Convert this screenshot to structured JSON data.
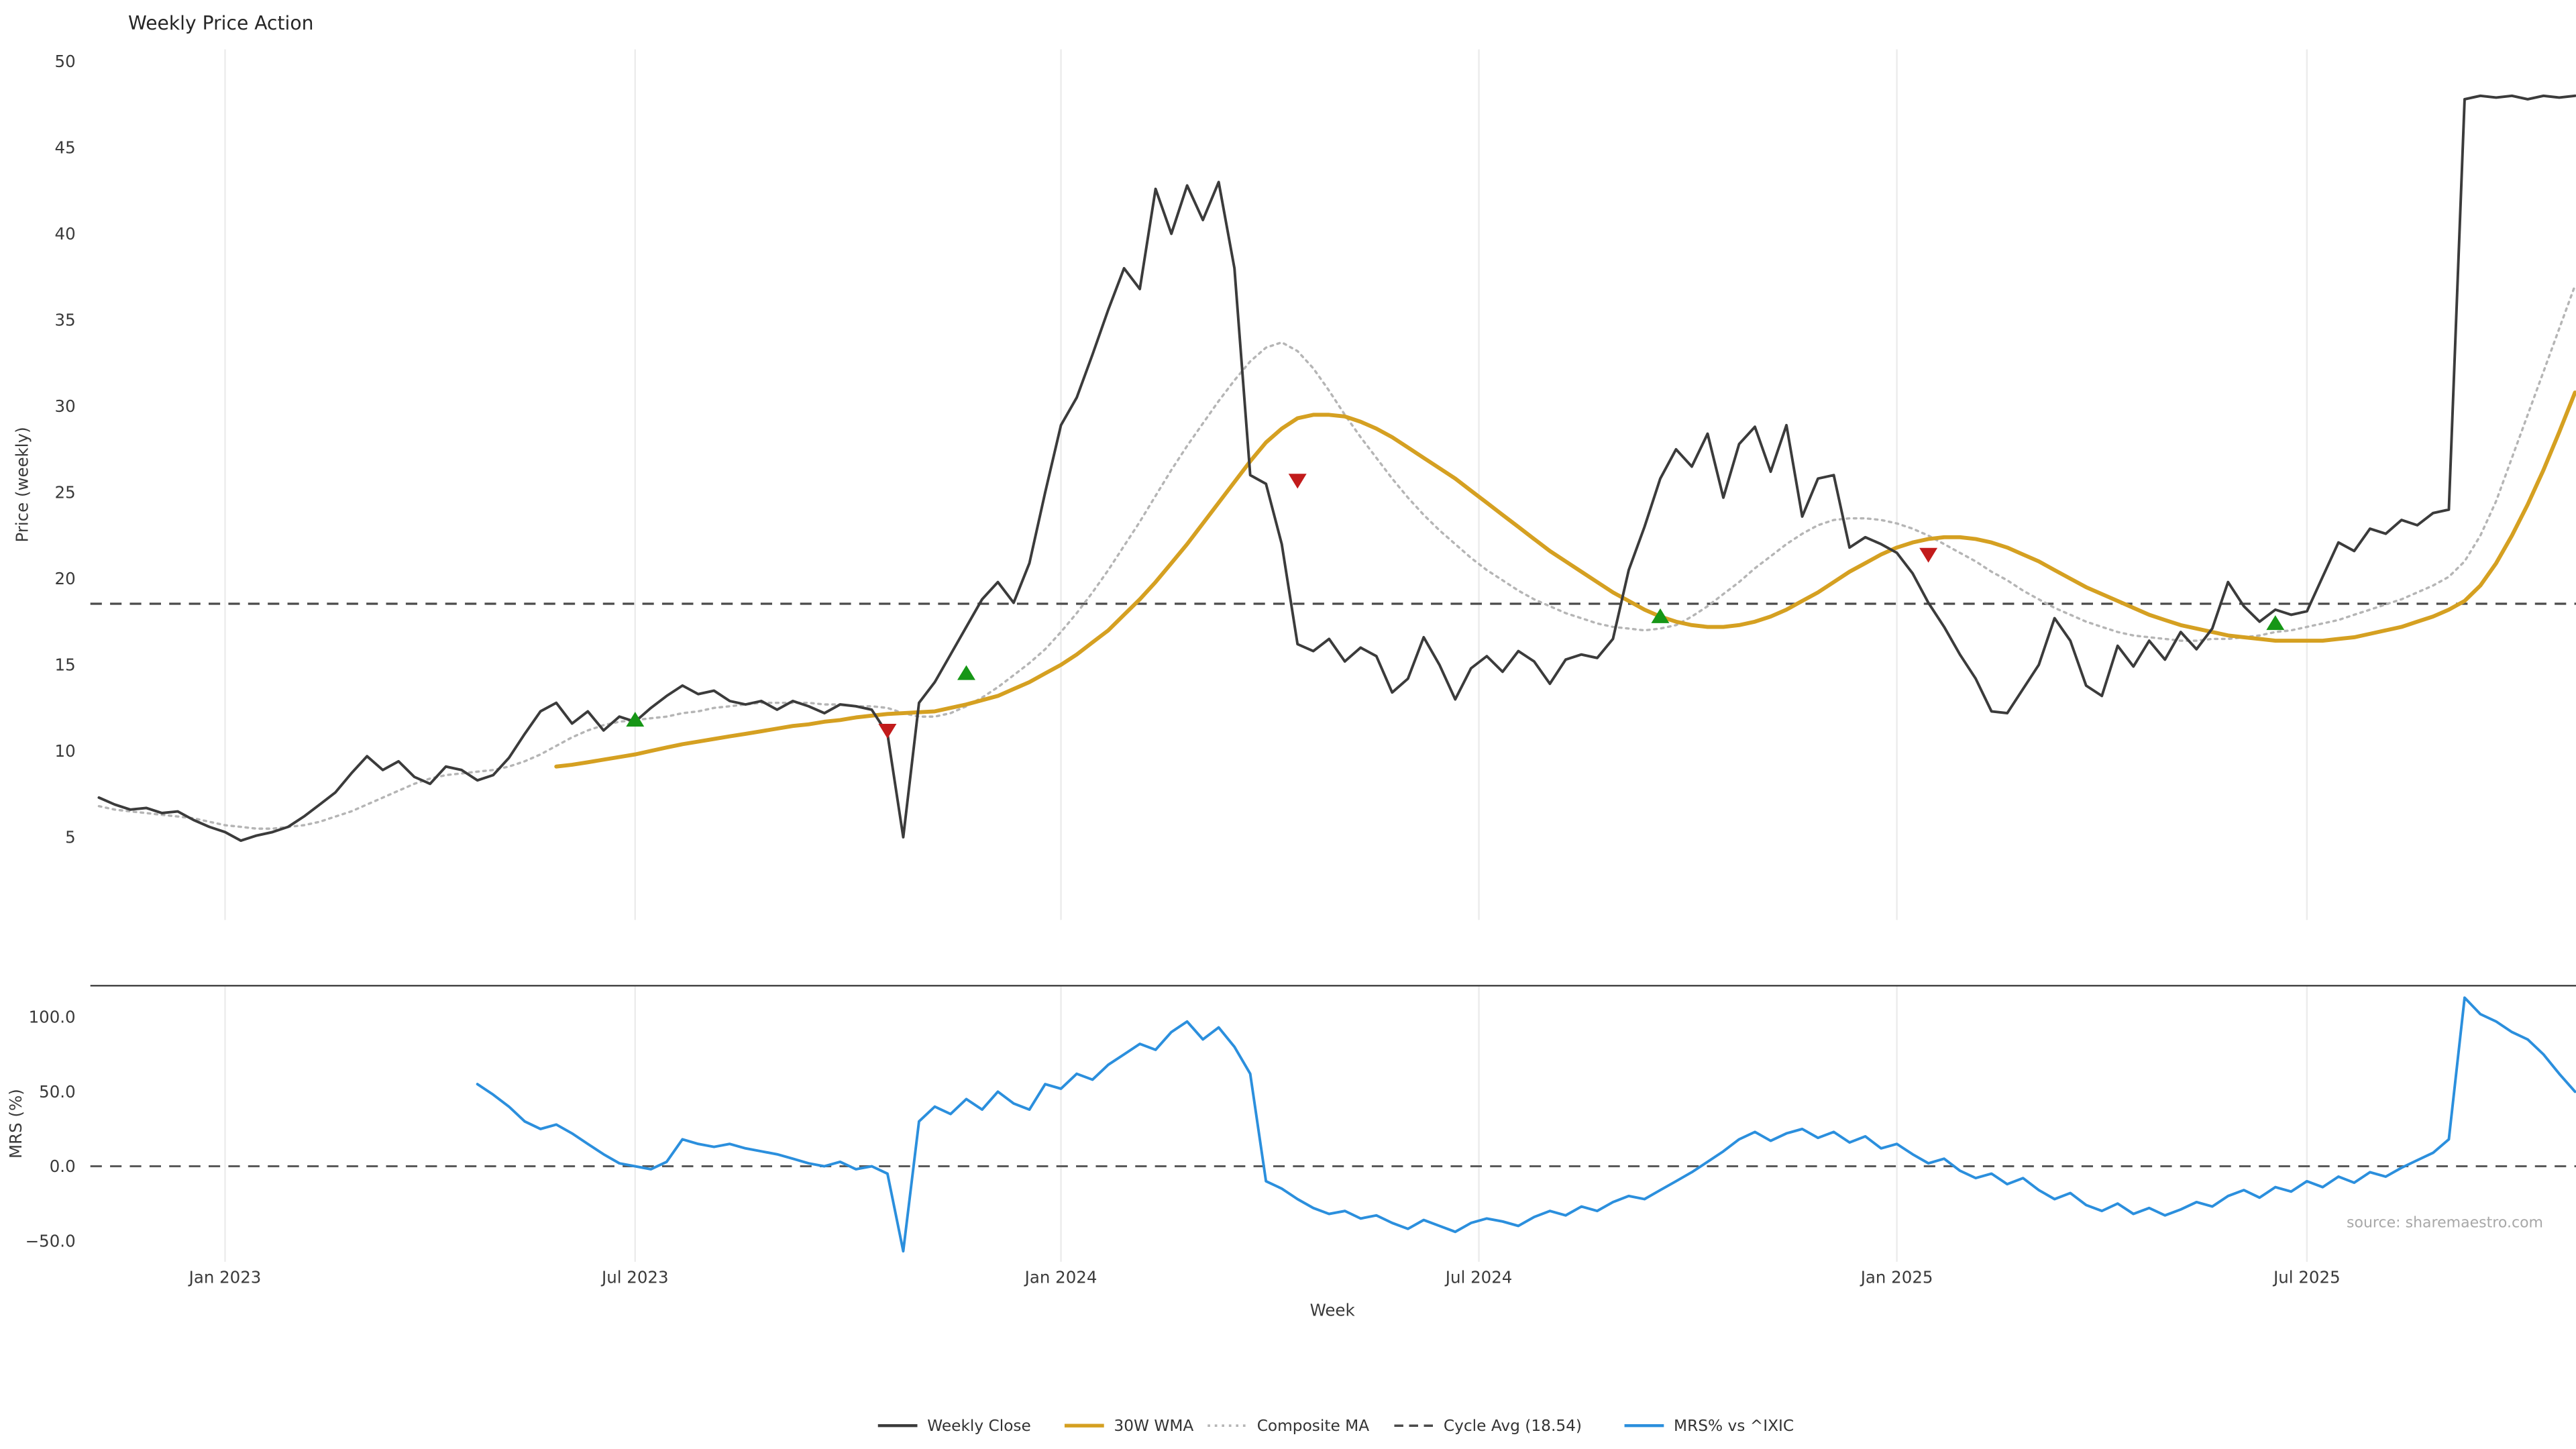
{
  "title": "Weekly Price Action",
  "source": "source: sharemaestro.com",
  "axes": {
    "price_label": "Price (weekly)",
    "mrs_label": "MRS (%)",
    "x_label": "Week"
  },
  "legend": [
    {
      "label": "Weekly Close",
      "color": "#3b3b3b",
      "style": "solid",
      "width": 1.8
    },
    {
      "label": "30W WMA",
      "color": "#d5a021",
      "style": "solid",
      "width": 2.2
    },
    {
      "label": "Composite MA",
      "color": "#b5b5b5",
      "style": "dotted",
      "width": 1.5
    },
    {
      "label": "Cycle Avg (18.54)",
      "color": "#4a4a4a",
      "style": "dashed",
      "width": 1.4
    },
    {
      "label": "MRS% vs ^IXIC",
      "color": "#2b8fdd",
      "style": "solid",
      "width": 1.8
    }
  ],
  "chart_data": {
    "type": "line",
    "title": "Weekly Price Action",
    "xlabel": "Week",
    "x_unit": "week_index",
    "grid": "vertical-only",
    "legend_position": "bottom-center",
    "x_ticks": [
      {
        "week": 8,
        "label": "Jan 2023"
      },
      {
        "week": 34,
        "label": "Jul 2023"
      },
      {
        "week": 61,
        "label": "Jan 2024"
      },
      {
        "week": 87.5,
        "label": "Jul 2024"
      },
      {
        "week": 114,
        "label": "Jan 2025"
      },
      {
        "week": 140,
        "label": "Jul 2025"
      }
    ],
    "signal_colors": {
      "buy": "#169616",
      "sell": "#c21b1b"
    },
    "panels": [
      {
        "name": "price",
        "ylabel": "Price (weekly)",
        "ylim": [
          0.2,
          50.7
        ],
        "yticks": [
          5,
          10,
          15,
          20,
          25,
          30,
          35,
          40,
          45,
          50
        ],
        "cycle_avg": 18.54,
        "series": [
          {
            "name": "Weekly Close",
            "color": "#3b3b3b",
            "style": "solid",
            "width": 1.6,
            "start_week": 0,
            "values": [
              7.3,
              6.9,
              6.6,
              6.7,
              6.4,
              6.5,
              6.0,
              5.6,
              5.3,
              4.8,
              5.1,
              5.3,
              5.6,
              6.2,
              6.9,
              7.6,
              8.7,
              9.7,
              8.9,
              9.4,
              8.5,
              8.1,
              9.1,
              8.9,
              8.3,
              8.6,
              9.6,
              11.0,
              12.3,
              12.8,
              11.6,
              12.3,
              11.2,
              12.0,
              11.7,
              12.5,
              13.2,
              13.8,
              13.3,
              13.5,
              12.9,
              12.7,
              12.9,
              12.4,
              12.9,
              12.6,
              12.2,
              12.7,
              12.6,
              12.4,
              11.0,
              5.0,
              12.8,
              14.0,
              15.6,
              17.2,
              18.8,
              19.8,
              18.6,
              20.9,
              25.0,
              28.9,
              30.5,
              33.0,
              35.6,
              38.0,
              36.8,
              42.6,
              40.0,
              42.8,
              40.8,
              43.0,
              38.0,
              26.0,
              25.5,
              22.0,
              16.2,
              15.8,
              16.5,
              15.2,
              16.0,
              15.5,
              13.4,
              14.2,
              16.6,
              15.0,
              13.0,
              14.8,
              15.5,
              14.6,
              15.8,
              15.2,
              13.9,
              15.3,
              15.6,
              15.4,
              16.5,
              20.5,
              23.0,
              25.8,
              27.5,
              26.5,
              28.4,
              24.7,
              27.8,
              28.8,
              26.2,
              28.9,
              23.6,
              25.8,
              26.0,
              21.8,
              22.4,
              22.0,
              21.5,
              20.3,
              18.6,
              17.2,
              15.6,
              14.2,
              12.3,
              12.2,
              13.6,
              15.0,
              17.7,
              16.4,
              13.8,
              13.2,
              16.1,
              14.9,
              16.4,
              15.3,
              16.9,
              15.9,
              17.1,
              19.8,
              18.4,
              17.5,
              18.2,
              17.9,
              18.1,
              20.1,
              22.1,
              21.6,
              22.9,
              22.6,
              23.4,
              23.1,
              23.8,
              24.0,
              47.8,
              48.0,
              47.9,
              48.0,
              47.8,
              48.0,
              47.9,
              48.0
            ]
          },
          {
            "name": "30W WMA",
            "color": "#d5a021",
            "style": "solid",
            "width": 2.4,
            "start_week": 29,
            "values": [
              9.1,
              9.2,
              9.35,
              9.5,
              9.65,
              9.8,
              10.0,
              10.2,
              10.4,
              10.55,
              10.7,
              10.85,
              11.0,
              11.15,
              11.3,
              11.45,
              11.55,
              11.7,
              11.8,
              11.95,
              12.05,
              12.15,
              12.2,
              12.25,
              12.3,
              12.5,
              12.7,
              12.95,
              13.2,
              13.6,
              14.0,
              14.5,
              15.0,
              15.6,
              16.3,
              17.0,
              17.9,
              18.8,
              19.8,
              20.9,
              22.0,
              23.2,
              24.4,
              25.6,
              26.8,
              27.9,
              28.7,
              29.3,
              29.5,
              29.5,
              29.4,
              29.1,
              28.7,
              28.2,
              27.6,
              27.0,
              26.4,
              25.8,
              25.1,
              24.4,
              23.7,
              23.0,
              22.3,
              21.6,
              21.0,
              20.4,
              19.8,
              19.2,
              18.7,
              18.2,
              17.8,
              17.5,
              17.3,
              17.2,
              17.2,
              17.3,
              17.5,
              17.8,
              18.2,
              18.7,
              19.2,
              19.8,
              20.4,
              20.9,
              21.4,
              21.8,
              22.1,
              22.3,
              22.4,
              22.4,
              22.3,
              22.1,
              21.8,
              21.4,
              21.0,
              20.5,
              20.0,
              19.5,
              19.1,
              18.7,
              18.3,
              17.9,
              17.6,
              17.3,
              17.1,
              16.9,
              16.7,
              16.6,
              16.5,
              16.4,
              16.4,
              16.4,
              16.4,
              16.5,
              16.6,
              16.8,
              17.0,
              17.2,
              17.5,
              17.8,
              18.2,
              18.7,
              19.6,
              20.9,
              22.5,
              24.3,
              26.3,
              28.5,
              30.8
            ]
          },
          {
            "name": "Composite MA",
            "color": "#b5b5b5",
            "style": "dotted",
            "width": 1.4,
            "start_week": 0,
            "values": [
              6.8,
              6.6,
              6.5,
              6.4,
              6.3,
              6.2,
              6.1,
              5.9,
              5.7,
              5.6,
              5.5,
              5.5,
              5.6,
              5.7,
              5.9,
              6.2,
              6.5,
              6.9,
              7.3,
              7.7,
              8.1,
              8.4,
              8.6,
              8.7,
              8.8,
              8.9,
              9.1,
              9.4,
              9.8,
              10.3,
              10.8,
              11.2,
              11.5,
              11.7,
              11.8,
              11.9,
              12.0,
              12.2,
              12.3,
              12.5,
              12.6,
              12.7,
              12.8,
              12.8,
              12.8,
              12.8,
              12.7,
              12.7,
              12.6,
              12.6,
              12.5,
              12.2,
              12.0,
              12.0,
              12.2,
              12.6,
              13.1,
              13.7,
              14.4,
              15.1,
              15.9,
              16.9,
              18.0,
              19.2,
              20.5,
              21.9,
              23.3,
              24.8,
              26.3,
              27.7,
              29.0,
              30.3,
              31.5,
              32.6,
              33.4,
              33.7,
              33.2,
              32.2,
              30.9,
              29.5,
              28.2,
              27.0,
              25.8,
              24.7,
              23.7,
              22.8,
              22.0,
              21.2,
              20.5,
              19.9,
              19.3,
              18.8,
              18.4,
              18.0,
              17.7,
              17.4,
              17.2,
              17.1,
              17.0,
              17.1,
              17.3,
              17.8,
              18.4,
              19.1,
              19.8,
              20.6,
              21.3,
              22.0,
              22.6,
              23.1,
              23.4,
              23.5,
              23.5,
              23.4,
              23.2,
              22.9,
              22.5,
              22.0,
              21.5,
              21.0,
              20.4,
              19.9,
              19.3,
              18.8,
              18.3,
              17.9,
              17.5,
              17.2,
              16.9,
              16.7,
              16.6,
              16.5,
              16.4,
              16.4,
              16.5,
              16.5,
              16.6,
              16.7,
              16.9,
              17.0,
              17.2,
              17.4,
              17.6,
              17.9,
              18.2,
              18.5,
              18.8,
              19.2,
              19.6,
              20.1,
              21.0,
              22.5,
              24.5,
              27.0,
              29.5,
              32.0,
              34.5,
              37.0
            ]
          }
        ],
        "signals": {
          "buy": [
            {
              "week": 34,
              "price": 11.8
            },
            {
              "week": 55,
              "price": 14.5
            },
            {
              "week": 99,
              "price": 17.8
            },
            {
              "week": 138,
              "price": 17.4
            }
          ],
          "sell": [
            {
              "week": 50,
              "price": 11.2
            },
            {
              "week": 76,
              "price": 25.7
            },
            {
              "week": 116,
              "price": 21.4
            }
          ]
        }
      },
      {
        "name": "mrs",
        "ylabel": "MRS (%)",
        "ylim": [
          -64,
          121
        ],
        "yticks": [
          -50,
          0,
          50,
          100
        ],
        "ytick_labels": [
          "−50.0",
          "0.0",
          "50.0",
          "100.0"
        ],
        "zero_line": 0,
        "series": [
          {
            "name": "MRS% vs ^IXIC",
            "color": "#2b8fdd",
            "style": "solid",
            "width": 1.6,
            "start_week": 24,
            "values": [
              55,
              48,
              40,
              30,
              25,
              28,
              22,
              15,
              8,
              2,
              0,
              -2,
              3,
              18,
              15,
              13,
              15,
              12,
              10,
              8,
              5,
              2,
              0,
              3,
              -2,
              0,
              -5,
              -57,
              30,
              40,
              35,
              45,
              38,
              50,
              42,
              38,
              55,
              52,
              62,
              58,
              68,
              75,
              82,
              78,
              90,
              97,
              85,
              93,
              80,
              62,
              -10,
              -15,
              -22,
              -28,
              -32,
              -30,
              -35,
              -33,
              -38,
              -42,
              -36,
              -40,
              -44,
              -38,
              -35,
              -37,
              -40,
              -34,
              -30,
              -33,
              -27,
              -30,
              -24,
              -20,
              -22,
              -16,
              -10,
              -4,
              3,
              10,
              18,
              23,
              17,
              22,
              25,
              19,
              23,
              16,
              20,
              12,
              15,
              8,
              2,
              5,
              -3,
              -8,
              -5,
              -12,
              -8,
              -16,
              -22,
              -18,
              -26,
              -30,
              -25,
              -32,
              -28,
              -33,
              -29,
              -24,
              -27,
              -20,
              -16,
              -21,
              -14,
              -17,
              -10,
              -14,
              -7,
              -11,
              -4,
              -7,
              -1,
              4,
              9,
              18,
              113,
              102,
              97,
              90,
              85,
              75,
              62,
              50
            ]
          }
        ]
      }
    ]
  }
}
